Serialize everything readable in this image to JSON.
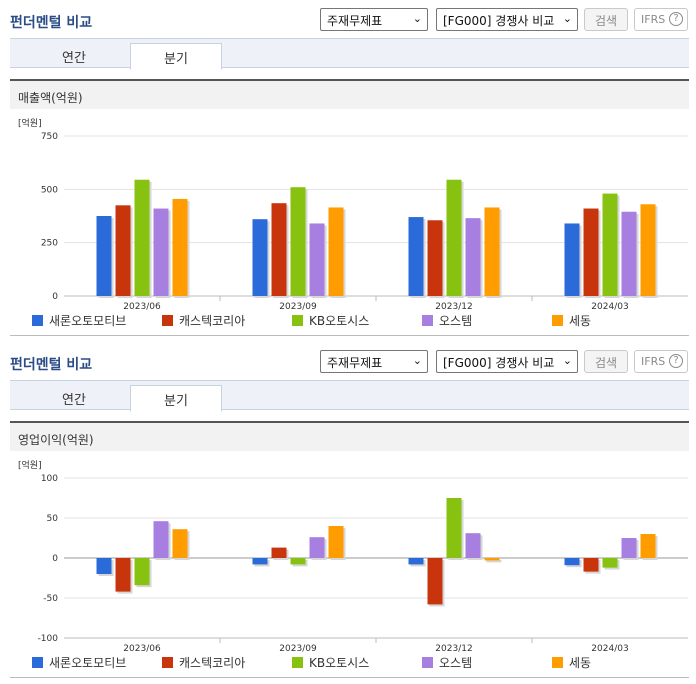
{
  "sections": [
    {
      "title": "펀더멘털 비교",
      "select_statement": "주재무제표",
      "select_peer": "[FG000] 경쟁사 비교",
      "search_label": "검색",
      "ifrs_label": "IFRS",
      "help_glyph": "?",
      "tabs": [
        {
          "label": "연간"
        },
        {
          "label": "분기"
        }
      ],
      "active_tab": "분기",
      "metric_title": "매출액(억원)",
      "unit_label": "[억원]"
    },
    {
      "title": "펀더멘털 비교",
      "select_statement": "주재무제표",
      "select_peer": "[FG000] 경쟁사 비교",
      "search_label": "검색",
      "ifrs_label": "IFRS",
      "help_glyph": "?",
      "tabs": [
        {
          "label": "연간"
        },
        {
          "label": "분기"
        }
      ],
      "active_tab": "분기",
      "metric_title": "영업이익(억원)",
      "unit_label": "[억원]"
    }
  ],
  "chart_data": [
    {
      "type": "bar",
      "ylabel": "[억원]",
      "ylim": [
        0,
        750
      ],
      "yticks": [
        0,
        250,
        500,
        750
      ],
      "categories": [
        "2023/06",
        "2023/09",
        "2023/12",
        "2024/03"
      ],
      "legend_position": "bottom",
      "series": [
        {
          "name": "새론오토모티브",
          "color": "#2a6ad9",
          "values": [
            375,
            360,
            370,
            340
          ]
        },
        {
          "name": "캐스텍코리아",
          "color": "#c8340b",
          "values": [
            425,
            435,
            355,
            410
          ]
        },
        {
          "name": "KB오토시스",
          "color": "#86c20f",
          "values": [
            545,
            510,
            545,
            480
          ]
        },
        {
          "name": "오스템",
          "color": "#a77fe0",
          "values": [
            410,
            340,
            365,
            395
          ]
        },
        {
          "name": "세동",
          "color": "#ff9c00",
          "values": [
            455,
            415,
            415,
            430
          ]
        }
      ]
    },
    {
      "type": "bar",
      "ylabel": "[억원]",
      "ylim": [
        -100,
        100
      ],
      "yticks": [
        -100,
        -50,
        0,
        50,
        100
      ],
      "categories": [
        "2023/06",
        "2023/09",
        "2023/12",
        "2024/03"
      ],
      "legend_position": "bottom",
      "series": [
        {
          "name": "새론오토모티브",
          "color": "#2a6ad9",
          "values": [
            -20,
            -8,
            -8,
            -9
          ]
        },
        {
          "name": "캐스텍코리아",
          "color": "#c8340b",
          "values": [
            -42,
            13,
            -58,
            -17
          ]
        },
        {
          "name": "KB오토시스",
          "color": "#86c20f",
          "values": [
            -34,
            -8,
            75,
            -12
          ]
        },
        {
          "name": "오스템",
          "color": "#a77fe0",
          "values": [
            46,
            26,
            31,
            25
          ]
        },
        {
          "name": "세동",
          "color": "#ff9c00",
          "values": [
            36,
            40,
            -3,
            30
          ]
        }
      ]
    }
  ]
}
